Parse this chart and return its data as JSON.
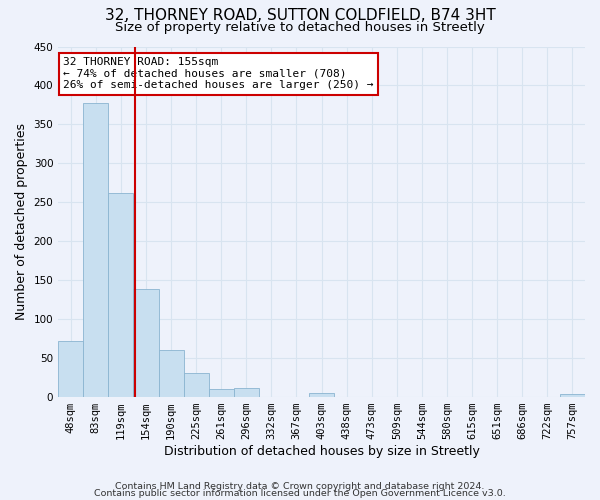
{
  "title": "32, THORNEY ROAD, SUTTON COLDFIELD, B74 3HT",
  "subtitle": "Size of property relative to detached houses in Streetly",
  "xlabel": "Distribution of detached houses by size in Streetly",
  "ylabel": "Number of detached properties",
  "bar_labels": [
    "48sqm",
    "83sqm",
    "119sqm",
    "154sqm",
    "190sqm",
    "225sqm",
    "261sqm",
    "296sqm",
    "332sqm",
    "367sqm",
    "403sqm",
    "438sqm",
    "473sqm",
    "509sqm",
    "544sqm",
    "580sqm",
    "615sqm",
    "651sqm",
    "686sqm",
    "722sqm",
    "757sqm"
  ],
  "bar_values": [
    72,
    378,
    262,
    138,
    60,
    30,
    10,
    11,
    0,
    0,
    5,
    0,
    0,
    0,
    0,
    0,
    0,
    0,
    0,
    0,
    3
  ],
  "bar_color": "#c8dff0",
  "bar_edge_color": "#8ab4d0",
  "vline_x": 2.57,
  "vline_color": "#cc0000",
  "annotation_line1": "32 THORNEY ROAD: 155sqm",
  "annotation_line2": "← 74% of detached houses are smaller (708)",
  "annotation_line3": "26% of semi-detached houses are larger (250) →",
  "annotation_box_color": "#ffffff",
  "annotation_box_edge": "#cc0000",
  "ylim": [
    0,
    450
  ],
  "yticks": [
    0,
    50,
    100,
    150,
    200,
    250,
    300,
    350,
    400,
    450
  ],
  "footer1": "Contains HM Land Registry data © Crown copyright and database right 2024.",
  "footer2": "Contains public sector information licensed under the Open Government Licence v3.0.",
  "background_color": "#eef2fb",
  "grid_color": "#d8e4f0",
  "title_fontsize": 11,
  "subtitle_fontsize": 9.5,
  "axis_label_fontsize": 9,
  "tick_fontsize": 7.5,
  "annotation_fontsize": 8,
  "footer_fontsize": 6.8
}
